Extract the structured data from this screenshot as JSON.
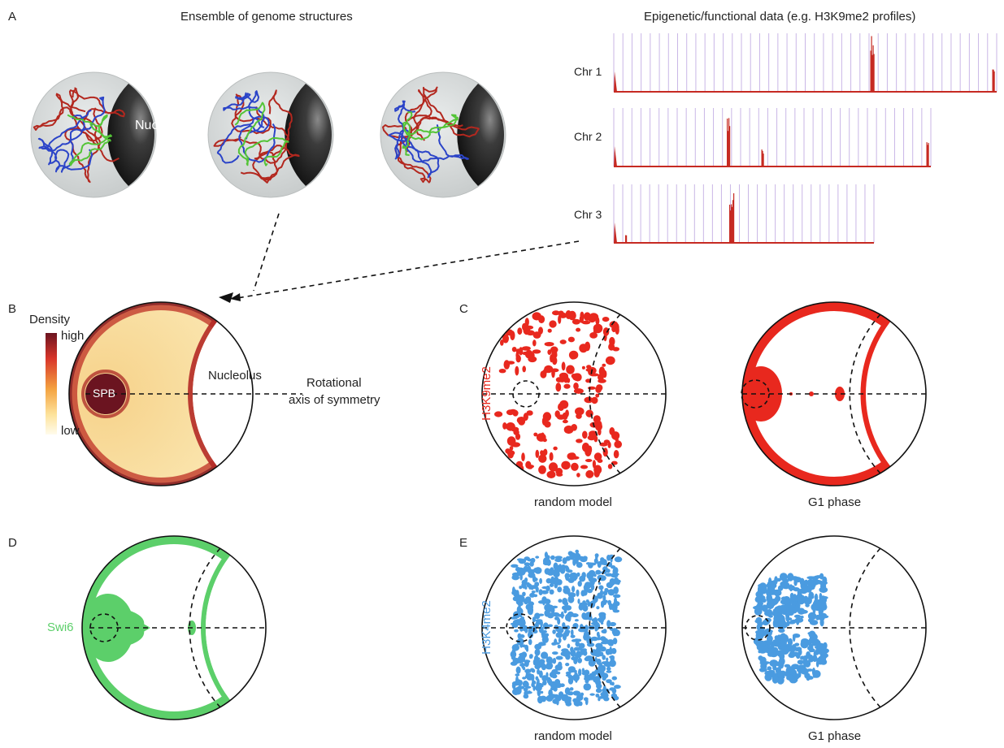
{
  "panelA": {
    "letter": "A",
    "title_left": "Ensemble of genome structures",
    "title_right": "Epigenetic/functional data (e.g. H3K9me2 profiles)",
    "nucleolus_label": "Nucleolus",
    "chromosomes": [
      "Chr 1",
      "Chr 2",
      "Chr 3"
    ]
  },
  "panelB": {
    "letter": "B",
    "colorbar_title": "Density",
    "colorbar_high": "high",
    "colorbar_low": "low",
    "spb_label": "SPB",
    "nucleolus_label": "Nucleolus",
    "axis_label_line1": "Rotational",
    "axis_label_line2": "axis of symmetry"
  },
  "panelC": {
    "letter": "C",
    "mark_label": "H3K9me2",
    "caption_left": "random model",
    "caption_right": "G1 phase"
  },
  "panelD": {
    "letter": "D",
    "mark_label": "Swi6"
  },
  "panelE": {
    "letter": "E",
    "mark_label": "H3K4me2",
    "caption_left": "random model",
    "caption_right": "G1 phase"
  },
  "colors": {
    "h3k9me2": "#e8281e",
    "swi6": "#5ccf6a",
    "h3k4me2": "#4a9be0",
    "density_high": "#6b1420",
    "density_low": "#fff4cc",
    "sphere": "#d8dcdc",
    "nucleolus": "#2e2e2e",
    "chrom_red": "#b3281f",
    "chrom_blue": "#2b44c8",
    "chrom_green": "#54c437"
  }
}
